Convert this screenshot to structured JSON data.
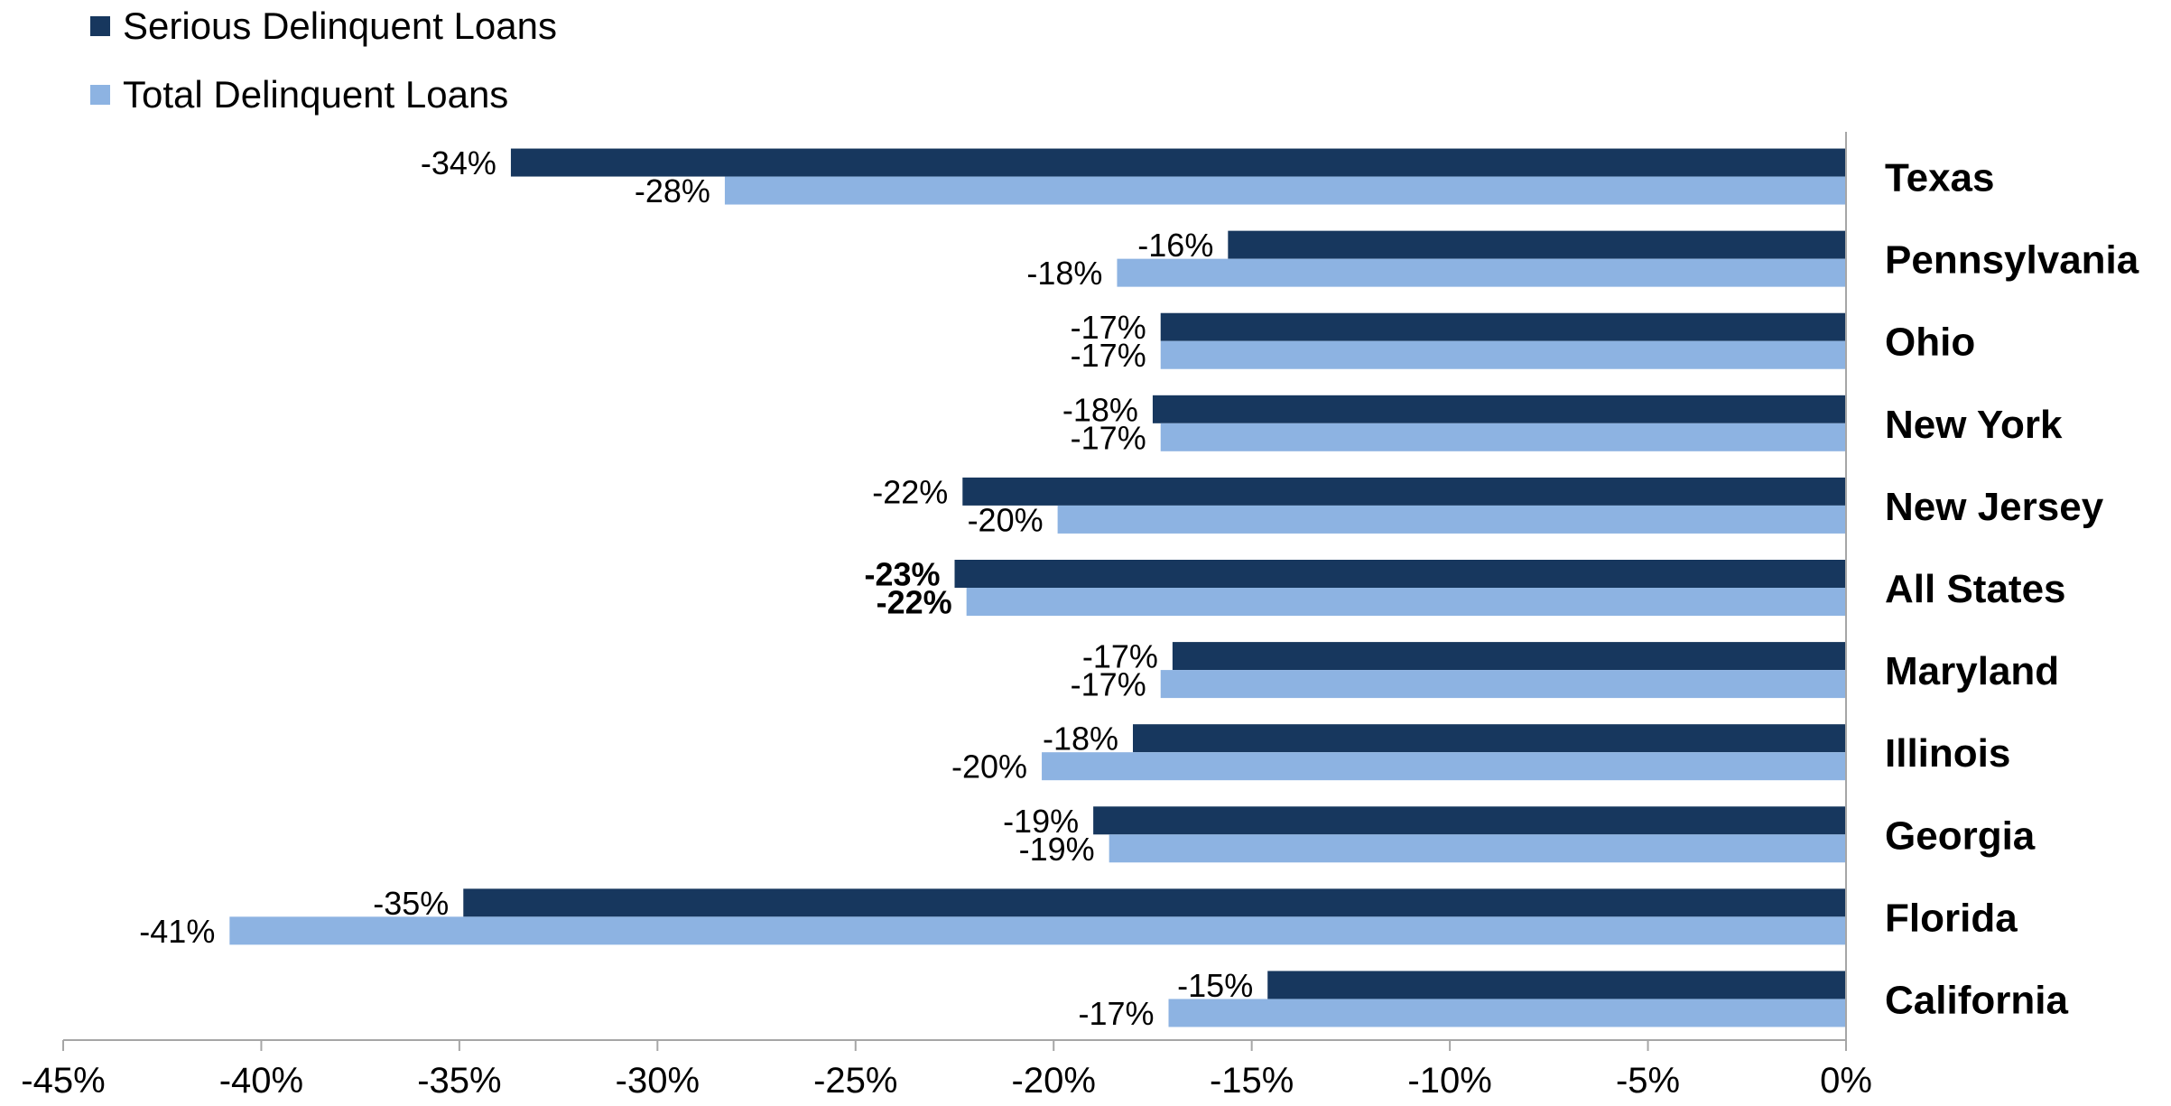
{
  "chart_data": {
    "type": "bar",
    "orientation": "horizontal",
    "categories": [
      "Texas",
      "Pennsylvania",
      "Ohio",
      "New York",
      "New Jersey",
      "All States",
      "Maryland",
      "Illinois",
      "Georgia",
      "Florida",
      "California"
    ],
    "highlighted_category": "All States",
    "series": [
      {
        "name": "Serious Delinquent Loans",
        "color": "#17375E",
        "values": [
          -33.7,
          -15.6,
          -17.3,
          -17.5,
          -22.3,
          -22.5,
          -17.0,
          -18.0,
          -19.0,
          -34.9,
          -14.6
        ],
        "labels": [
          "-34%",
          "-16%",
          "-17%",
          "-18%",
          "-22%",
          "-23%",
          "-17%",
          "-18%",
          "-19%",
          "-35%",
          "-15%"
        ]
      },
      {
        "name": "Total Delinquent Loans",
        "color": "#8DB3E2",
        "values": [
          -28.3,
          -18.4,
          -17.3,
          -17.3,
          -19.9,
          -22.2,
          -17.3,
          -20.3,
          -18.6,
          -40.8,
          -17.1
        ],
        "labels": [
          "-28%",
          "-18%",
          "-17%",
          "-17%",
          "-20%",
          "-22%",
          "-17%",
          "-20%",
          "-19%",
          "-41%",
          "-17%"
        ]
      }
    ],
    "x_axis": {
      "min": -45,
      "max": 0,
      "ticks": [
        -45,
        -40,
        -35,
        -30,
        -25,
        -20,
        -15,
        -10,
        -5,
        0
      ],
      "tick_labels": [
        "-45%",
        "-40%",
        "-35%",
        "-30%",
        "-25%",
        "-20%",
        "-15%",
        "-10%",
        "-5%",
        "0%"
      ]
    },
    "title": "",
    "xlabel": "",
    "ylabel": "",
    "grid": false,
    "legend_position": "top-left",
    "axis_color": "#A6A6A6"
  }
}
